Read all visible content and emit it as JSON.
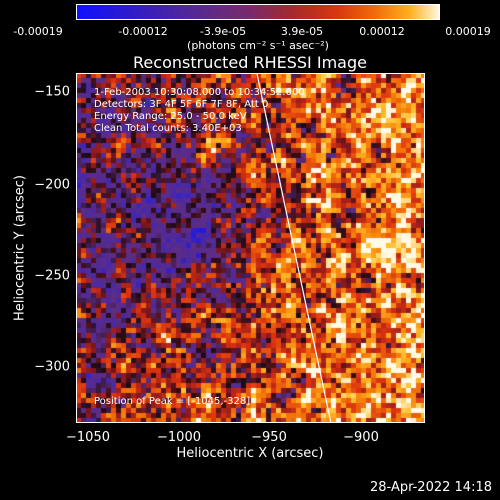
{
  "colorbar": {
    "ticks": [
      "-0.00019",
      "-0.00012",
      "-3.9e-05",
      "3.9e-05",
      "0.00012",
      "0.00019"
    ],
    "unit_label": "(photons cm⁻² s⁻¹ asec⁻²)",
    "range": [
      -0.00019,
      0.00019
    ]
  },
  "info": {
    "time_range": "1-Feb-2003 10:30:08.000 to 10:34:52.000",
    "detectors": "Detectors: 3F 4F 5F 6F 7F 8F, Att 0",
    "energy": "Energy Range: 25.0 - 50.0 keV",
    "clean": "Clean     Total counts: 3.40E+03",
    "peak": "Position of Peak = [-1045,-328]"
  },
  "timestamp": "28-Apr-2022 14:18",
  "chart_data": {
    "type": "heatmap",
    "title": "Reconstructed RHESSI Image",
    "xlabel": "Heliocentric X (arcsec)",
    "ylabel": "Heliocentric Y (arcsec)",
    "xlim": [
      -1057,
      -864
    ],
    "ylim": [
      -333,
      -140
    ],
    "x_ticks": [
      -1050,
      -1000,
      -950,
      -900
    ],
    "x_tick_labels": [
      "−1050",
      "−1000",
      "−950",
      "−900"
    ],
    "y_ticks": [
      -150,
      -200,
      -250,
      -300
    ],
    "y_tick_labels": [
      "−150",
      "−200",
      "−250",
      "−300"
    ],
    "limb_line": [
      [
        -957,
        -140
      ],
      [
        -916,
        -333
      ]
    ],
    "colors": {
      "negative": "#1010ff",
      "zero": "#6a2a7a",
      "positive": "#ffffff"
    }
  }
}
